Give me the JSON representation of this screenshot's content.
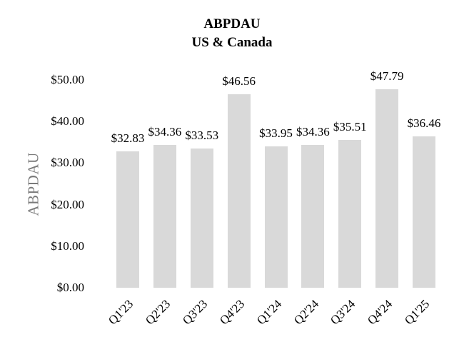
{
  "chart": {
    "title": "ABPDAU",
    "subtitle": "US & Canada",
    "y_axis_title": "ABPDAU",
    "colors": {
      "bar": "#d9d9d9",
      "axis_title_text": "#7a7a7a",
      "text": "#000000",
      "background": "#ffffff"
    }
  },
  "chart_data": {
    "type": "bar",
    "title": "ABPDAU",
    "subtitle": "US & Canada",
    "xlabel": "",
    "ylabel": "ABPDAU",
    "categories": [
      "Q1'23",
      "Q2'23",
      "Q3'23",
      "Q4'23",
      "Q1'24",
      "Q2'24",
      "Q3'24",
      "Q4'24",
      "Q1'25"
    ],
    "values": [
      32.83,
      34.36,
      33.53,
      46.56,
      33.95,
      34.36,
      35.51,
      47.79,
      36.46
    ],
    "data_labels": [
      "$32.83",
      "$34.36",
      "$33.53",
      "$46.56",
      "$33.95",
      "$34.36",
      "$35.51",
      "$47.79",
      "$36.46"
    ],
    "yticks": [
      {
        "value": 0,
        "label": "$0.00"
      },
      {
        "value": 10,
        "label": "$10.00"
      },
      {
        "value": 20,
        "label": "$20.00"
      },
      {
        "value": 30,
        "label": "$30.00"
      },
      {
        "value": 40,
        "label": "$40.00"
      },
      {
        "value": 50,
        "label": "$50.00"
      }
    ],
    "ylim": [
      0,
      50
    ],
    "grid": false,
    "legend": false,
    "bar_color": "#d9d9d9"
  }
}
